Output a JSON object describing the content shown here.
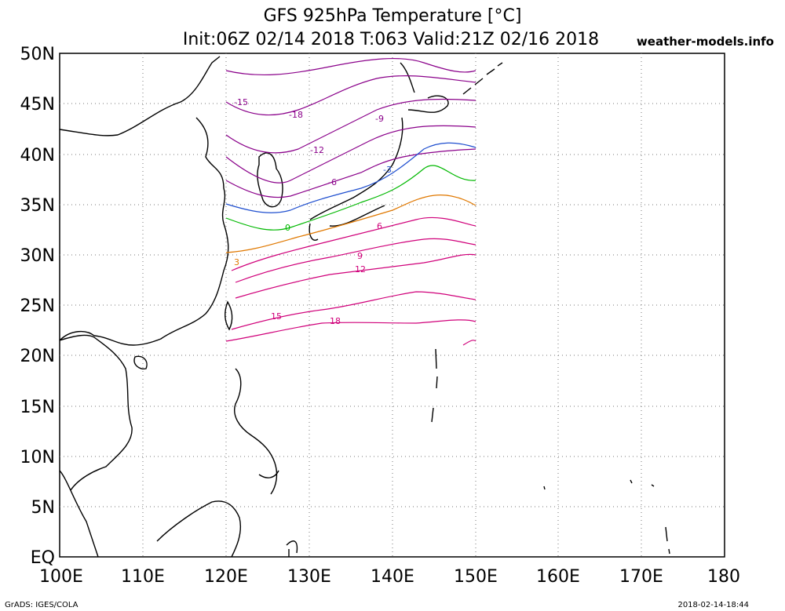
{
  "header": {
    "title": "GFS 925hPa Temperature [°C]",
    "subtitle": "Init:06Z 02/14 2018 T:063 Valid:21Z 02/16 2018",
    "site": "weather-models.info"
  },
  "footer": {
    "left": "GrADS: IGES/COLA",
    "right": "2018-02-14-18:44"
  },
  "map": {
    "lon_range": [
      100,
      180
    ],
    "lat_range": [
      0,
      50
    ],
    "data_lon_range": [
      120,
      150
    ],
    "data_lat_range": [
      20,
      50
    ],
    "grid": "dotted",
    "x_ticks": [
      "100E",
      "110E",
      "120E",
      "130E",
      "140E",
      "150E",
      "160E",
      "170E",
      "180"
    ],
    "y_ticks": [
      "EQ",
      "5N",
      "10N",
      "15N",
      "20N",
      "25N",
      "30N",
      "35N",
      "40N",
      "45N",
      "50N"
    ]
  },
  "colors": {
    "grid": "#666666",
    "coast": "#000000",
    "minus18": "#8a008a",
    "minus15": "#8a008a",
    "minus12": "#8a008a",
    "minus9": "#8a008a",
    "minus6": "#8a008a",
    "minus3": "#1f4fcf",
    "zero": "#00b800",
    "three": "#e07800",
    "warm": "#d0007a"
  },
  "contours": [
    {
      "value": -18,
      "label": "-18",
      "color": "#8a008a"
    },
    {
      "value": -15,
      "label": "-15",
      "color": "#8a008a"
    },
    {
      "value": -12,
      "label": "-12",
      "color": "#8a008a"
    },
    {
      "value": -9,
      "label": "-9",
      "color": "#8a008a"
    },
    {
      "value": -6,
      "label": "-6",
      "color": "#8a008a"
    },
    {
      "value": -3,
      "label": "-3",
      "color": "#1f4fcf"
    },
    {
      "value": 0,
      "label": "0",
      "color": "#00b800"
    },
    {
      "value": 3,
      "label": "3",
      "color": "#e07800"
    },
    {
      "value": 6,
      "label": "6",
      "color": "#d0007a"
    },
    {
      "value": 9,
      "label": "9",
      "color": "#d0007a"
    },
    {
      "value": 12,
      "label": "12",
      "color": "#d0007a"
    },
    {
      "value": 15,
      "label": "15",
      "color": "#d0007a"
    },
    {
      "value": 18,
      "label": "18",
      "color": "#d0007a"
    }
  ]
}
